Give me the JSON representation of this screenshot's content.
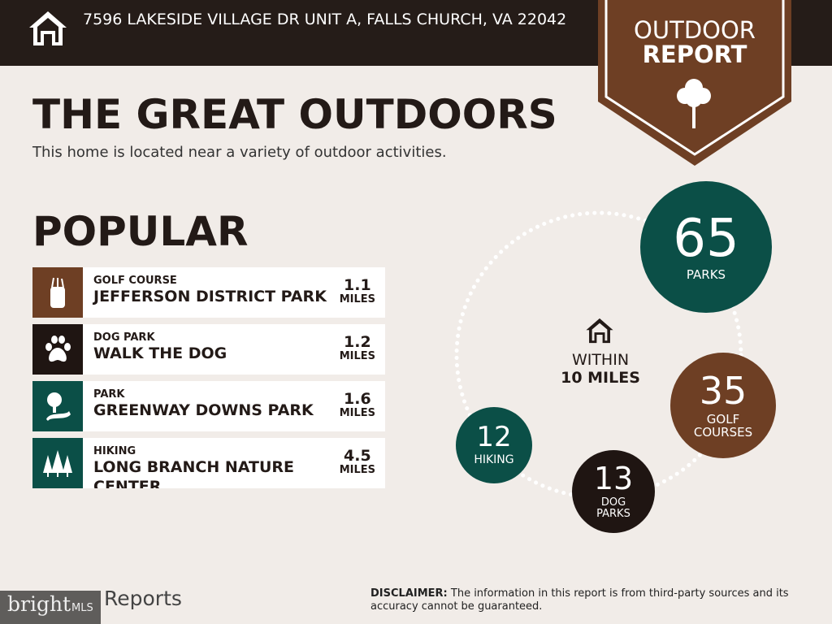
{
  "header": {
    "address": "7596 LAKESIDE VILLAGE DR UNIT A, FALLS CHURCH, VA 22042",
    "home_icon": "house-icon"
  },
  "badge": {
    "line1": "OUTDOOR",
    "line2": "REPORT",
    "icon": "tree-icon"
  },
  "title": "THE GREAT OUTDOORS",
  "subtitle": "This home is located near a variety of outdoor activities.",
  "popular": {
    "title": "POPULAR",
    "items": [
      {
        "category": "GOLF COURSE",
        "name": "JEFFERSON DISTRICT PARK",
        "distance": "1.1",
        "unit": "MILES",
        "icon": "golf-bag-icon",
        "color": "#6e3f24"
      },
      {
        "category": "DOG PARK",
        "name": "WALK THE DOG",
        "distance": "1.2",
        "unit": "MILES",
        "icon": "paw-icon",
        "color": "#1f1512"
      },
      {
        "category": "PARK",
        "name": "GREENWAY DOWNS PARK",
        "distance": "1.6",
        "unit": "MILES",
        "icon": "park-icon",
        "color": "#0b4f47"
      },
      {
        "category": "HIKING",
        "name": "LONG BRANCH NATURE CENTER",
        "distance": "4.5",
        "unit": "MILES",
        "icon": "pine-trees-icon",
        "color": "#0b4f47"
      }
    ]
  },
  "summary": {
    "within1": "WITHIN",
    "within2": "10 MILES",
    "counts": [
      {
        "value": "65",
        "label": "PARKS",
        "color": "#0b4f47"
      },
      {
        "value": "35",
        "label": "GOLF COURSES",
        "color": "#6e3f24"
      },
      {
        "value": "13",
        "label": "DOG PARKS",
        "color": "#1f1512"
      },
      {
        "value": "12",
        "label": "HIKING",
        "color": "#0b4f47"
      }
    ]
  },
  "footer": {
    "disclaimer_label": "DISCLAIMER:",
    "disclaimer": " The information in this report is from third-party sources and its accuracy cannot be guaranteed.",
    "brand": "Reports",
    "logo": "bright MLS"
  }
}
